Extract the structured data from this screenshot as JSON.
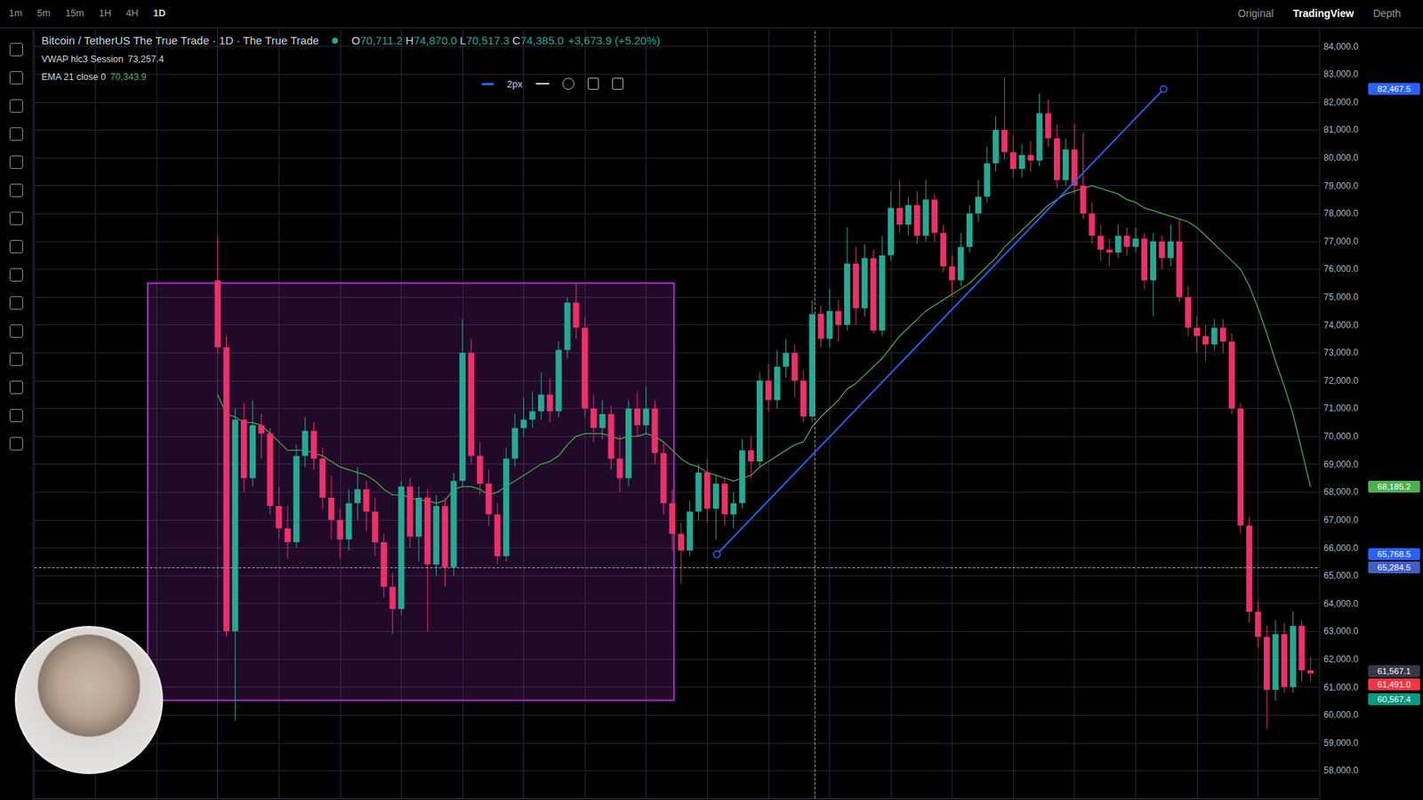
{
  "chart_data": {
    "type": "candlestick",
    "title": "Bitcoin / TetherUS The True Trade · 1D · The True Trade",
    "readout": [
      {
        "label": "O",
        "value": "70,711.2"
      },
      {
        "label": "H",
        "value": "74,870.0"
      },
      {
        "label": "L",
        "value": "70,517.3"
      },
      {
        "label": "C",
        "value": "74,385.0"
      }
    ],
    "change": "+3,673.9 (+5.20%)",
    "indicators": [
      {
        "name": "VWAP hlc3 Session",
        "readout": "73,257.4"
      }
    ],
    "x": [
      0,
      1,
      2,
      3,
      4,
      5,
      6,
      7,
      8,
      9,
      10,
      11,
      12,
      13,
      14,
      15,
      16,
      17,
      18,
      19,
      20,
      21,
      22,
      23,
      24,
      25,
      26,
      27,
      28,
      29,
      30,
      31,
      32,
      33,
      34,
      35,
      36,
      37,
      38,
      39,
      40,
      41,
      42,
      43,
      44,
      45,
      46,
      47,
      48,
      49,
      50,
      51,
      52,
      53,
      54,
      55,
      56,
      57,
      58,
      59,
      60,
      61,
      62,
      63,
      64,
      65,
      66,
      67,
      68,
      69,
      70,
      71,
      72,
      73,
      74,
      75,
      76,
      77,
      78,
      79,
      80,
      81,
      82,
      83,
      84,
      85,
      86,
      87,
      88,
      89,
      90,
      91,
      92,
      93,
      94,
      95,
      96,
      97,
      98,
      99,
      100,
      101,
      102,
      103,
      104,
      105,
      106,
      107,
      108,
      109,
      110,
      111,
      112,
      113,
      114,
      115,
      116,
      117,
      118,
      119,
      120,
      121,
      122,
      123,
      124,
      125
    ],
    "open": [
      75600,
      73200,
      63000,
      70600,
      68500,
      70400,
      70100,
      67500,
      66700,
      66200,
      69300,
      70200,
      69200,
      67800,
      67000,
      66300,
      67600,
      68100,
      67300,
      66200,
      64600,
      63800,
      68200,
      66400,
      67800,
      65400,
      67500,
      65300,
      68400,
      73000,
      69300,
      68300,
      67200,
      65700,
      69200,
      70300,
      70600,
      70900,
      71500,
      70900,
      73100,
      74800,
      73900,
      71000,
      70300,
      70800,
      69200,
      68500,
      71000,
      70400,
      71000,
      69400,
      67600,
      66500,
      65900,
      67300,
      68700,
      67400,
      68300,
      67200,
      67600,
      69500,
      69100,
      72000,
      71300,
      72500,
      73000,
      72000,
      70711.2,
      74400,
      73500,
      74500,
      74000,
      76200,
      74600,
      76400,
      73800,
      76500,
      78200,
      77600,
      78300,
      77200,
      78500,
      77300,
      76100,
      75600,
      76800,
      78000,
      78600,
      79800,
      81000,
      80200,
      79600,
      80100,
      79900,
      81600,
      80700,
      79200,
      80300,
      79000,
      78000,
      77200,
      76700,
      76600,
      77200,
      76800,
      77100,
      75600,
      77000,
      76400,
      77000,
      75000,
      73900,
      73600,
      73300,
      73900,
      73400,
      71000,
      66800,
      63700,
      62800,
      60900,
      62900,
      61000,
      63200,
      61600
    ],
    "high": [
      77200,
      73600,
      71000,
      71200,
      71300,
      70800,
      70300,
      68200,
      67500,
      69700,
      70700,
      70500,
      69600,
      68600,
      67400,
      68100,
      68900,
      68400,
      67800,
      66500,
      65100,
      68400,
      68500,
      68200,
      68100,
      67900,
      67800,
      68700,
      74200,
      73500,
      69800,
      68800,
      67600,
      69600,
      70800,
      71400,
      71600,
      72300,
      72100,
      73400,
      75000,
      75500,
      74300,
      71500,
      71300,
      71100,
      70000,
      71300,
      71600,
      71800,
      71300,
      69800,
      68100,
      66900,
      67700,
      69000,
      69200,
      68600,
      68500,
      68000,
      69900,
      70000,
      72300,
      72600,
      73100,
      73500,
      73300,
      72400,
      74870,
      74700,
      75300,
      74900,
      77500,
      76800,
      76900,
      76700,
      77200,
      78800,
      79200,
      78600,
      78800,
      79200,
      78700,
      77600,
      76500,
      77300,
      78300,
      79200,
      80400,
      81500,
      82900,
      80800,
      80500,
      80600,
      82300,
      82100,
      81200,
      80700,
      81200,
      80900,
      78400,
      77600,
      77100,
      77600,
      77500,
      77500,
      77300,
      77300,
      77200,
      77600,
      77800,
      75400,
      74300,
      74000,
      74200,
      74200,
      73700,
      71200,
      67100,
      64100,
      63200,
      63400,
      63300,
      63700,
      63400,
      62100
    ],
    "low": [
      73000,
      62800,
      59800,
      68000,
      68200,
      69200,
      67200,
      66300,
      65600,
      66000,
      68900,
      68800,
      67400,
      66300,
      65600,
      65900,
      67000,
      66600,
      65700,
      64200,
      62900,
      63600,
      66000,
      65500,
      63000,
      65000,
      64600,
      65000,
      68200,
      69000,
      67900,
      66800,
      65400,
      65500,
      68900,
      70000,
      70300,
      70600,
      70500,
      70700,
      72800,
      73500,
      70700,
      69800,
      69900,
      68800,
      68000,
      68200,
      70000,
      70100,
      69000,
      67200,
      65900,
      64700,
      65700,
      67000,
      66900,
      66300,
      66800,
      66700,
      67400,
      68500,
      68900,
      70900,
      71000,
      72100,
      71400,
      70500,
      70517.3,
      73200,
      73200,
      73400,
      73800,
      74000,
      74300,
      73700,
      73600,
      76300,
      77300,
      77200,
      76900,
      77000,
      77000,
      75900,
      75000,
      75400,
      76600,
      77700,
      78400,
      79500,
      79900,
      79300,
      79300,
      79500,
      79700,
      80400,
      78900,
      79000,
      78700,
      77800,
      76900,
      76300,
      76100,
      76400,
      76500,
      76600,
      75300,
      74300,
      76000,
      76100,
      74800,
      73600,
      73000,
      72700,
      73100,
      73000,
      70800,
      66500,
      63300,
      62400,
      59500,
      60500,
      60800,
      60800,
      61200,
      61200
    ],
    "close": [
      73200,
      63000,
      70600,
      68500,
      70400,
      70100,
      67500,
      66700,
      66200,
      69300,
      70200,
      69200,
      67800,
      67000,
      66300,
      67600,
      68100,
      67300,
      66200,
      64600,
      63800,
      68200,
      66400,
      67800,
      65400,
      67500,
      65300,
      68400,
      73000,
      69300,
      68300,
      67200,
      65700,
      69200,
      70300,
      70600,
      70900,
      71500,
      70900,
      73100,
      74800,
      73900,
      71000,
      70300,
      70800,
      69200,
      68500,
      71000,
      70400,
      71000,
      69400,
      67600,
      66500,
      65900,
      67300,
      68700,
      67400,
      68300,
      67200,
      67600,
      69500,
      69100,
      72000,
      71300,
      72500,
      73000,
      72000,
      70711.2,
      74385,
      73500,
      74500,
      74000,
      76200,
      74600,
      76400,
      73800,
      76500,
      78200,
      77600,
      78300,
      77200,
      78500,
      77300,
      76100,
      75600,
      76800,
      78000,
      78600,
      79800,
      81000,
      80200,
      79600,
      80100,
      79900,
      81600,
      80700,
      79200,
      80300,
      79000,
      78000,
      77200,
      76700,
      76600,
      77200,
      76800,
      77100,
      75600,
      77000,
      76400,
      77000,
      75000,
      73900,
      73600,
      73300,
      73900,
      73400,
      71000,
      66800,
      63700,
      62800,
      60900,
      62900,
      61000,
      63200,
      61600,
      61491
    ],
    "series": [
      {
        "name": "EMA 21 close 0",
        "type": "line",
        "color": "#4caf50",
        "readout": "70,343.9",
        "values": [
          71500,
          70800,
          70700,
          70500,
          70500,
          70400,
          70100,
          69800,
          69500,
          69500,
          69500,
          69400,
          69300,
          69100,
          68900,
          68800,
          68700,
          68600,
          68400,
          68100,
          67900,
          67900,
          67800,
          67700,
          67700,
          67600,
          67700,
          68100,
          68200,
          68200,
          68100,
          67900,
          68000,
          68200,
          68400,
          68600,
          68800,
          69000,
          69100,
          69300,
          69700,
          70000,
          70100,
          70100,
          70100,
          70000,
          69900,
          70000,
          70000,
          70100,
          70000,
          69800,
          69500,
          69200,
          69000,
          68900,
          68700,
          68600,
          68500,
          68400,
          68500,
          68600,
          68900,
          69100,
          69300,
          69500,
          69700,
          69800,
          70343.9,
          70700,
          71000,
          71300,
          71700,
          71900,
          72200,
          72500,
          72800,
          73200,
          73600,
          73900,
          74200,
          74500,
          74700,
          74900,
          75100,
          75300,
          75500,
          75800,
          76100,
          76400,
          76800,
          77100,
          77400,
          77700,
          78000,
          78300,
          78500,
          78700,
          78800,
          78900,
          79000,
          78900,
          78800,
          78700,
          78500,
          78400,
          78200,
          78100,
          78000,
          77900,
          77800,
          77700,
          77500,
          77200,
          76900,
          76600,
          76300,
          76000,
          75400,
          74600,
          73700,
          72700,
          71800,
          70800,
          69500,
          68185.2
        ]
      }
    ],
    "trendline": {
      "x": [
        57.1,
        108.2
      ],
      "y": [
        65768.5,
        82467.5
      ],
      "color": "#2962ff"
    },
    "zones": [
      {
        "x": [
          -8,
          52.2
        ],
        "y": [
          75500,
          60520
        ],
        "color": "#b52cd6"
      }
    ],
    "crosshair": {
      "x": 68.3,
      "y": 65284.5
    },
    "price_tags": [
      {
        "value": 82467.5,
        "label": "82,467.5",
        "color": "#2962ff"
      },
      {
        "value": 68185.2,
        "label": "68,185.2",
        "color": "#4caf50"
      },
      {
        "value": 65768.5,
        "label": "65,768.5",
        "color": "#2962ff"
      },
      {
        "value": 65284.5,
        "label": "65,284.5",
        "color": "#3f5fc9"
      },
      {
        "value": 61567.1,
        "label": "61,567.1",
        "color": "#363a45"
      },
      {
        "value": 61491.0,
        "label": "61,491.0",
        "color": "#f23645"
      },
      {
        "value": 60567.4,
        "label": "60,567.4",
        "color": "#089981"
      }
    ],
    "xlim": [
      -21,
      126
    ],
    "xticks": [
      -21,
      -14,
      -7,
      0,
      7,
      14,
      21,
      28,
      35,
      42,
      49,
      56,
      63,
      70,
      77,
      84,
      91,
      98,
      105,
      112,
      119,
      126
    ],
    "ylim": [
      57000,
      84600
    ],
    "yticks": [
      {
        "value": 58000,
        "label": "58,000.0"
      },
      {
        "value": 59000,
        "label": "59,000.0"
      },
      {
        "value": 60000,
        "label": "60,000.0"
      },
      {
        "value": 61000,
        "label": "61,000.0"
      },
      {
        "value": 62000,
        "label": "62,000.0"
      },
      {
        "value": 63000,
        "label": "63,000.0"
      },
      {
        "value": 64000,
        "label": "64,000.0"
      },
      {
        "value": 65000,
        "label": "65,000.0"
      },
      {
        "value": 66000,
        "label": "66,000.0"
      },
      {
        "value": 67000,
        "label": "67,000.0"
      },
      {
        "value": 68000,
        "label": "68,000.0"
      },
      {
        "value": 69000,
        "label": "69,000.0"
      },
      {
        "value": 70000,
        "label": "70,000.0"
      },
      {
        "value": 71000,
        "label": "71,000.0"
      },
      {
        "value": 72000,
        "label": "72,000.0"
      },
      {
        "value": 73000,
        "label": "73,000.0"
      },
      {
        "value": 74000,
        "label": "74,000.0"
      },
      {
        "value": 75000,
        "label": "75,000.0"
      },
      {
        "value": 76000,
        "label": "76,000.0"
      },
      {
        "value": 77000,
        "label": "77,000.0"
      },
      {
        "value": 78000,
        "label": "78,000.0"
      },
      {
        "value": 79000,
        "label": "79,000.0"
      },
      {
        "value": 80000,
        "label": "80,000.0"
      },
      {
        "value": 81000,
        "label": "81,000.0"
      },
      {
        "value": 82000,
        "label": "82,000.0"
      },
      {
        "value": 83000,
        "label": "83,000.0"
      },
      {
        "value": 84000,
        "label": "84,000.0"
      }
    ],
    "grid": true,
    "tick_labels": "y"
  },
  "toolbar": {
    "timeframes": [
      {
        "label": "1m"
      },
      {
        "label": "5m"
      },
      {
        "label": "15m"
      },
      {
        "label": "1H"
      },
      {
        "label": "4H"
      },
      {
        "label": "1D",
        "active": true
      }
    ],
    "views": [
      {
        "label": "Original"
      },
      {
        "label": "TradingView",
        "active": true
      },
      {
        "label": "Depth"
      }
    ],
    "drawing_toolbar": {
      "line_width": "2px"
    }
  }
}
